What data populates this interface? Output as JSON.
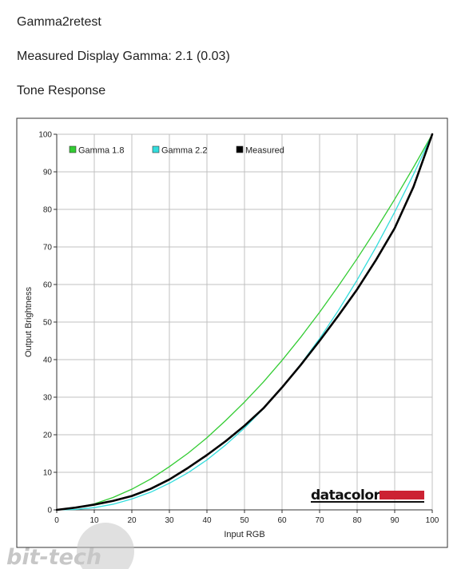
{
  "header": {
    "title": "Gamma2retest",
    "measured_gamma": "Measured Display Gamma: 2.1 (0.03)",
    "section": "Tone Response"
  },
  "branding": {
    "chart_logo": "datacolor",
    "chart_logo_bar_color": "#cc2233",
    "watermark": "bit-tech"
  },
  "colors": {
    "gamma18": "#33cc33",
    "gamma22": "#33dddd",
    "measured": "#000000",
    "grid": "#c0c0c0"
  },
  "chart_data": {
    "type": "line",
    "title": "",
    "xlabel": "Input RGB",
    "ylabel": "Output Brightness",
    "xlim": [
      0,
      100
    ],
    "ylim": [
      0,
      100
    ],
    "xticks": [
      0,
      10,
      20,
      30,
      40,
      50,
      60,
      70,
      80,
      90,
      100
    ],
    "yticks": [
      0,
      10,
      20,
      30,
      40,
      50,
      60,
      70,
      80,
      90,
      100
    ],
    "grid": true,
    "legend_position": "top-left",
    "x": [
      0,
      5,
      10,
      15,
      20,
      25,
      30,
      35,
      40,
      45,
      50,
      55,
      60,
      65,
      70,
      75,
      80,
      85,
      90,
      95,
      100
    ],
    "series": [
      {
        "name": "Gamma 1.8",
        "color": "#33cc33",
        "values": [
          0,
          0.5,
          1.6,
          3.3,
          5.5,
          8.2,
          11.5,
          15.1,
          19.2,
          23.8,
          28.7,
          34.0,
          39.8,
          46.0,
          52.6,
          59.6,
          66.9,
          74.6,
          82.7,
          91.2,
          100
        ]
      },
      {
        "name": "Gamma 2.2",
        "color": "#33dddd",
        "values": [
          0,
          0.1,
          0.6,
          1.5,
          2.9,
          4.7,
          7.1,
          9.9,
          13.3,
          17.3,
          21.8,
          26.9,
          32.5,
          38.8,
          45.6,
          53.1,
          61.2,
          69.9,
          79.3,
          89.3,
          100
        ]
      },
      {
        "name": "Measured",
        "color": "#000000",
        "values": [
          0,
          0.6,
          1.4,
          2.4,
          3.7,
          5.6,
          8.1,
          11.2,
          14.6,
          18.3,
          22.4,
          27.0,
          32.6,
          38.6,
          45.0,
          51.7,
          58.7,
          66.5,
          75.0,
          86.0,
          100
        ]
      }
    ]
  }
}
